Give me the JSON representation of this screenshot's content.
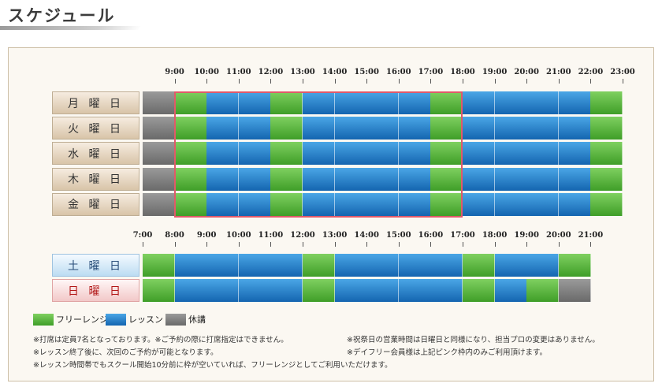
{
  "page": {
    "title": "スケジュール"
  },
  "top_times": [
    "9:00",
    "10:00",
    "11:00",
    "12:00",
    "13:00",
    "14:00",
    "15:00",
    "16:00",
    "17:00",
    "18:00",
    "19:00",
    "20:00",
    "21:00",
    "22:00",
    "23:00"
  ],
  "weekdays": [
    {
      "label": "月 曜 日"
    },
    {
      "label": "火 曜 日"
    },
    {
      "label": "水 曜 日"
    },
    {
      "label": "木 曜 日"
    },
    {
      "label": "金 曜 日"
    }
  ],
  "weekday_pattern": [
    "rest",
    "free",
    "lesson",
    "lesson",
    "free",
    "lesson",
    "lesson",
    "lesson",
    "lesson",
    "free",
    "lesson",
    "lesson",
    "lesson",
    "lesson",
    "free"
  ],
  "bottom_times": [
    "7:00",
    "8:00",
    "9:00",
    "10:00",
    "11:00",
    "12:00",
    "13:00",
    "14:00",
    "15:00",
    "16:00",
    "17:00",
    "18:00",
    "19:00",
    "20:00",
    "21:00"
  ],
  "weekend": [
    {
      "label": "土 曜 日",
      "kind": "sat",
      "pattern": [
        "free",
        "lesson",
        "lesson",
        "lesson",
        "lesson",
        "free",
        "lesson",
        "lesson",
        "lesson",
        "lesson",
        "free",
        "lesson",
        "lesson",
        "free"
      ]
    },
    {
      "label": "日 曜 日",
      "kind": "sun",
      "pattern": [
        "free",
        "lesson",
        "lesson",
        "lesson",
        "lesson",
        "free",
        "lesson",
        "lesson",
        "lesson",
        "lesson",
        "free",
        "lesson",
        "free",
        "rest"
      ]
    }
  ],
  "legend": {
    "free": "フリーレンジ",
    "lesson": "レッスン",
    "rest": "休講",
    "colors": {
      "free": "#4fae35",
      "lesson": "#1f7cc8",
      "rest": "#7a7a7a",
      "highlight": "#e05a6a"
    }
  },
  "notes": {
    "n1": "※打席は定員7名となっております。※ご予約の際に打席指定はできません。",
    "n2": "※レッスン終了後に、次回のご予約が可能となります。",
    "n3": "※レッスン時間帯でもスクール開始10分前に枠が空いていれば、フリーレンジとしてご利用いただけます。",
    "n4": "※祝祭日の営業時間は日曜日と同様になり、担当プロの変更はありません。",
    "n5": "※デイフリー会員様は上記ピンク枠内のみご利用頂けます。"
  }
}
